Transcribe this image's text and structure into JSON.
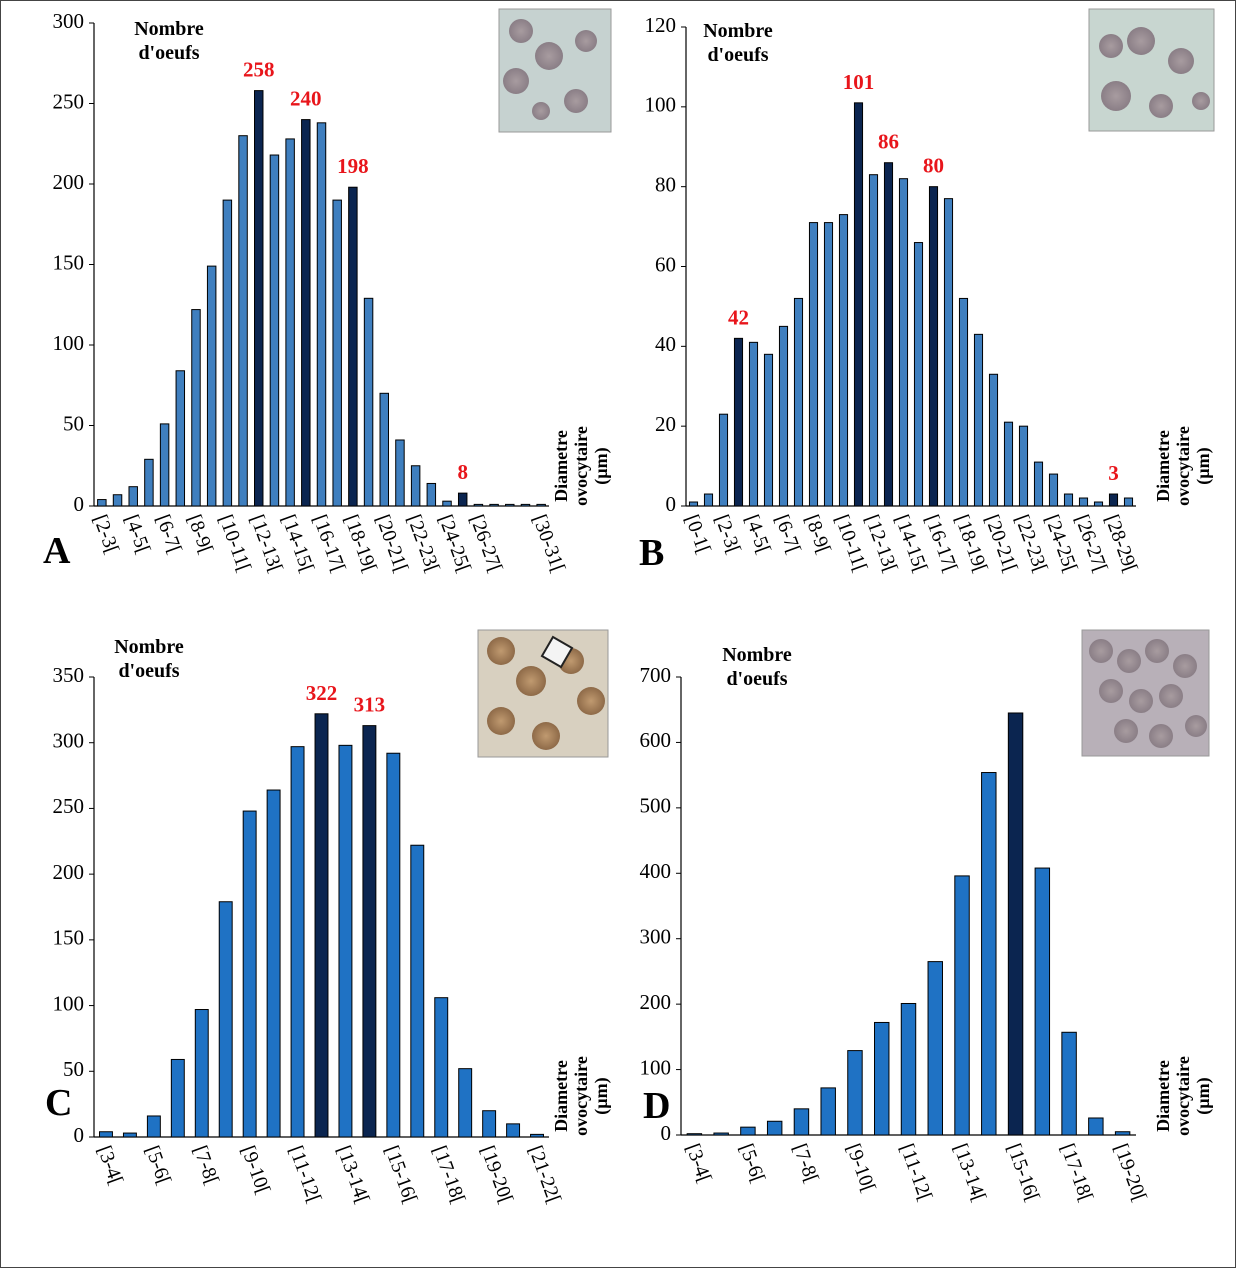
{
  "chart_data": [
    {
      "type": "bar",
      "panel": "A",
      "y_title": "Nombre d'oeufs",
      "x_title": "Diametre ovocytaire (µm)",
      "categories": [
        "[2-3[",
        null,
        "[4-5[",
        null,
        "[6-7[",
        null,
        "[8-9[",
        null,
        "[10-11[",
        null,
        "[12-13[",
        null,
        "[14-15[",
        null,
        "[16-17[",
        null,
        "[18-19[",
        null,
        "[20-21[",
        null,
        "[22-23[",
        null,
        "[24-25[",
        null,
        "[26-27[",
        null,
        null,
        null,
        "[30-31["
      ],
      "values": [
        4,
        7,
        12,
        29,
        51,
        84,
        122,
        149,
        190,
        230,
        258,
        218,
        228,
        240,
        238,
        190,
        198,
        129,
        70,
        41,
        25,
        14,
        3,
        8,
        1,
        1,
        1,
        1,
        1
      ],
      "value_labels": [
        null,
        null,
        null,
        null,
        null,
        null,
        null,
        null,
        null,
        null,
        "258",
        null,
        null,
        "240",
        null,
        null,
        "198",
        null,
        null,
        null,
        null,
        null,
        null,
        "8",
        null,
        null,
        null,
        null,
        null
      ],
      "colors": [
        "#3f7fbf",
        "#0b2550"
      ],
      "bar_colors": [
        0,
        0,
        0,
        0,
        0,
        0,
        0,
        0,
        0,
        0,
        1,
        0,
        0,
        1,
        0,
        0,
        1,
        0,
        0,
        0,
        0,
        0,
        0,
        1,
        0,
        0,
        0,
        0,
        0
      ],
      "ylim": [
        0,
        300
      ],
      "yticks": [
        0,
        50,
        100,
        150,
        200,
        250,
        300
      ]
    },
    {
      "type": "bar",
      "panel": "B",
      "y_title": "Nombre d'oeufs",
      "x_title": "Diametre ovocytaire (µm)",
      "categories": [
        "[0-1[",
        null,
        "[2-3[",
        null,
        "[4-5[",
        null,
        "[6-7[",
        null,
        "[8-9[",
        null,
        "[10-11[",
        null,
        "[12-13[",
        null,
        "[14-15[",
        null,
        "[16-17[",
        null,
        "[18-19[",
        null,
        "[20-21[",
        null,
        "[22-23[",
        null,
        "[24-25[",
        null,
        "[26-27[",
        null,
        "[28-29[",
        null
      ],
      "values": [
        1,
        3,
        23,
        42,
        41,
        38,
        45,
        52,
        71,
        71,
        73,
        101,
        83,
        86,
        82,
        66,
        80,
        77,
        52,
        43,
        33,
        21,
        20,
        11,
        8,
        3,
        2,
        1,
        3,
        2
      ],
      "value_labels": [
        null,
        null,
        null,
        "42",
        null,
        null,
        null,
        null,
        null,
        null,
        null,
        "101",
        null,
        "86",
        null,
        null,
        "80",
        null,
        null,
        null,
        null,
        null,
        null,
        null,
        null,
        null,
        null,
        null,
        "3",
        null
      ],
      "colors": [
        "#3f7fbf",
        "#0b2550"
      ],
      "bar_colors": [
        0,
        0,
        0,
        1,
        0,
        0,
        0,
        0,
        0,
        0,
        0,
        1,
        0,
        1,
        0,
        0,
        1,
        0,
        0,
        0,
        0,
        0,
        0,
        0,
        0,
        0,
        0,
        0,
        1,
        0
      ],
      "ylim": [
        0,
        120
      ],
      "yticks": [
        0,
        20,
        40,
        60,
        80,
        100,
        120
      ]
    },
    {
      "type": "bar",
      "panel": "C",
      "y_title": "Nombre d'oeufs",
      "x_title": "Diametre ovocytaire (µm)",
      "categories": [
        "[3-4[",
        null,
        "[5-6[",
        null,
        "[7-8[",
        null,
        "[9-10[",
        null,
        "[11-12[",
        null,
        "[13-14[",
        null,
        "[15-16[",
        null,
        "[17-18[",
        null,
        "[19-20[",
        null,
        "[21-22["
      ],
      "values": [
        4,
        3,
        16,
        59,
        97,
        179,
        248,
        264,
        297,
        322,
        298,
        313,
        292,
        222,
        106,
        52,
        20,
        10,
        2
      ],
      "value_labels": [
        null,
        null,
        null,
        null,
        null,
        null,
        null,
        null,
        null,
        "322",
        null,
        "313",
        null,
        null,
        null,
        null,
        null,
        null,
        null
      ],
      "colors": [
        "#1f72c4",
        "#0b2550"
      ],
      "bar_colors": [
        0,
        0,
        0,
        0,
        0,
        0,
        0,
        0,
        0,
        1,
        0,
        1,
        0,
        0,
        0,
        0,
        0,
        0,
        0
      ],
      "ylim": [
        0,
        350
      ],
      "yticks": [
        0,
        50,
        100,
        150,
        200,
        250,
        300,
        350
      ]
    },
    {
      "type": "bar",
      "panel": "D",
      "y_title": "Nombre d'oeufs",
      "x_title": "Diametre ovocytaire (µm)",
      "categories": [
        "[3-4[",
        null,
        "[5-6[",
        null,
        "[7-8[",
        null,
        "[9-10[",
        null,
        "[11-12[",
        null,
        "[13-14[",
        null,
        "[15-16[",
        null,
        "[17-18[",
        null,
        "[19-20["
      ],
      "values": [
        2,
        3,
        12,
        21,
        40,
        72,
        129,
        172,
        201,
        265,
        396,
        554,
        645,
        408,
        157,
        26,
        5
      ],
      "colors": [
        "#1f72c4",
        "#0b2550"
      ],
      "bar_colors": [
        0,
        0,
        0,
        0,
        0,
        0,
        0,
        0,
        0,
        0,
        0,
        0,
        1,
        0,
        0,
        0,
        0
      ],
      "ylim": [
        0,
        700
      ],
      "yticks": [
        0,
        100,
        200,
        300,
        400,
        500,
        600,
        700
      ]
    }
  ]
}
